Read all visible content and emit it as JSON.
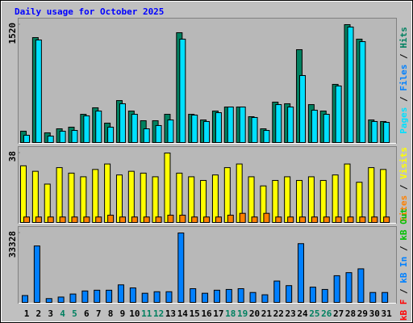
{
  "chart_data": [
    {
      "type": "bar",
      "title": "Daily usage for October 2025",
      "ylim": [
        0,
        1520
      ],
      "yticks": [
        1520
      ],
      "series": [
        {
          "name": "Hits",
          "color": "#008060",
          "values": [
            146,
            1353,
            125,
            177,
            198,
            364,
            448,
            250,
            541,
            406,
            281,
            281,
            364,
            1416,
            364,
            291,
            406,
            458,
            458,
            333,
            177,
            521,
            500,
            1197,
            489,
            406,
            750,
            1520,
            1333,
            291,
            271
          ]
        },
        {
          "name": "Files",
          "color": "#0080ff",
          "values": null
        },
        {
          "name": "Pages",
          "color": "#00e0ff",
          "values": [
            94,
            1322,
            83,
            146,
            156,
            344,
            406,
            198,
            500,
            364,
            177,
            219,
            291,
            1333,
            354,
            271,
            385,
            458,
            458,
            323,
            156,
            489,
            458,
            864,
            417,
            364,
            729,
            1489,
            1301,
            271,
            260
          ]
        }
      ]
    },
    {
      "type": "bar",
      "ylim": [
        0,
        38
      ],
      "yticks": [
        38
      ],
      "series": [
        {
          "name": "Visits",
          "color": "#ffff00",
          "values": [
            31,
            28,
            21,
            30,
            27,
            25,
            29,
            32,
            26,
            28,
            27,
            25,
            38,
            27,
            25,
            23,
            26,
            30,
            32,
            25,
            20,
            23,
            25,
            23,
            25,
            23,
            26,
            32,
            22,
            30,
            29
          ]
        },
        {
          "name": "Sites",
          "color": "#ff8000",
          "values": [
            3,
            3,
            3,
            3,
            3,
            3,
            3,
            4,
            3,
            3,
            3,
            3,
            4,
            4,
            3,
            3,
            3,
            4,
            5,
            3,
            5,
            3,
            3,
            3,
            3,
            3,
            3,
            3,
            3,
            3,
            3
          ]
        }
      ]
    },
    {
      "type": "bar",
      "ylim": [
        0,
        33328
      ],
      "yticks": [
        33328
      ],
      "categories": [
        "1",
        "2",
        "3",
        "4",
        "5",
        "6",
        "7",
        "8",
        "9",
        "10",
        "11",
        "12",
        "13",
        "14",
        "15",
        "16",
        "17",
        "18",
        "19",
        "20",
        "21",
        "22",
        "23",
        "24",
        "25",
        "26",
        "27",
        "28",
        "29",
        "30",
        "31"
      ],
      "category_colors": [
        "#000000",
        "#000000",
        "#000000",
        "#008060",
        "#008060",
        "#000000",
        "#000000",
        "#000000",
        "#000000",
        "#000000",
        "#008060",
        "#008060",
        "#000000",
        "#000000",
        "#000000",
        "#000000",
        "#000000",
        "#008060",
        "#008060",
        "#000000",
        "#000000",
        "#000000",
        "#000000",
        "#000000",
        "#008060",
        "#008060",
        "#000000",
        "#000000",
        "#000000",
        "#000000",
        "#000000"
      ],
      "series": [
        {
          "name": "kB Out",
          "color": "#00c000",
          "values": null
        },
        {
          "name": "kB In",
          "color": "#0080ff",
          "values": [
            3296,
            27100,
            1831,
            2563,
            4029,
            5494,
            5860,
            5860,
            8423,
            6958,
            4395,
            5127,
            5127,
            33328,
            6592,
            4395,
            5860,
            6226,
            6592,
            4761,
            3662,
            10254,
            8057,
            28200,
            7324,
            6226,
            12818,
            14283,
            16114,
            4761,
            4761
          ]
        },
        {
          "name": "kB F",
          "color": "#ff0000",
          "values": null
        }
      ]
    }
  ]
}
